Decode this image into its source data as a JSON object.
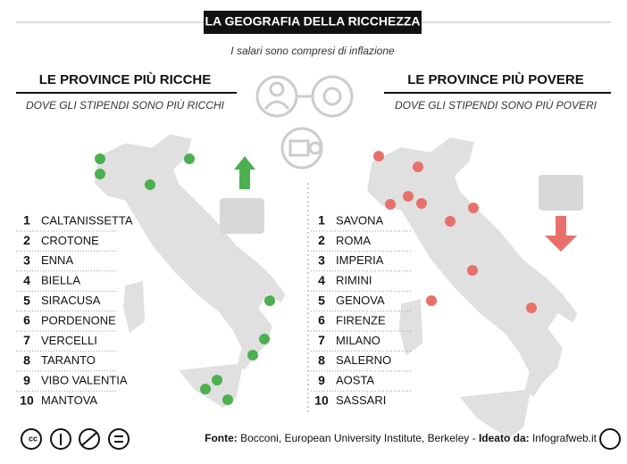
{
  "header": {
    "title": "LA GEOGRAFIA DELLA RICCHEZZA",
    "subtitle": "I salari sono compresi di inflazione"
  },
  "left": {
    "heading": "LE PROVINCE PIÙ RICCHE",
    "subheading": "DOVE GLI STIPENDI SONO PIÙ RICCHI",
    "items": [
      {
        "rank": 1,
        "name": "CALTANISSETTA"
      },
      {
        "rank": 2,
        "name": "CROTONE"
      },
      {
        "rank": 3,
        "name": "ENNA"
      },
      {
        "rank": 4,
        "name": "BIELLA"
      },
      {
        "rank": 5,
        "name": "SIRACUSA"
      },
      {
        "rank": 6,
        "name": "PORDENONE"
      },
      {
        "rank": 7,
        "name": "VERCELLI"
      },
      {
        "rank": 8,
        "name": "TARANTO"
      },
      {
        "rank": 9,
        "name": "VIBO VALENTIA"
      },
      {
        "rank": 10,
        "name": "MANTOVA"
      }
    ]
  },
  "right": {
    "heading": "LE PROVINCE PIÙ POVERE",
    "subheading": "DOVE GLI STIPENDI SONO PIÙ POVERI",
    "items": [
      {
        "rank": 1,
        "name": "SAVONA"
      },
      {
        "rank": 2,
        "name": "ROMA"
      },
      {
        "rank": 3,
        "name": "IMPERIA"
      },
      {
        "rank": 4,
        "name": "RIMINI"
      },
      {
        "rank": 5,
        "name": "GENOVA"
      },
      {
        "rank": 6,
        "name": "FIRENZE"
      },
      {
        "rank": 7,
        "name": "MILANO"
      },
      {
        "rank": 8,
        "name": "SALERNO"
      },
      {
        "rank": 9,
        "name": "AOSTA"
      },
      {
        "rank": 10,
        "name": "SASSARI"
      }
    ]
  },
  "footer": {
    "source_label": "Fonte:",
    "source": "Bocconi, European University Institute, Berkeley -",
    "author_label": "Ideato da:",
    "author": "Infografweb.it"
  }
}
